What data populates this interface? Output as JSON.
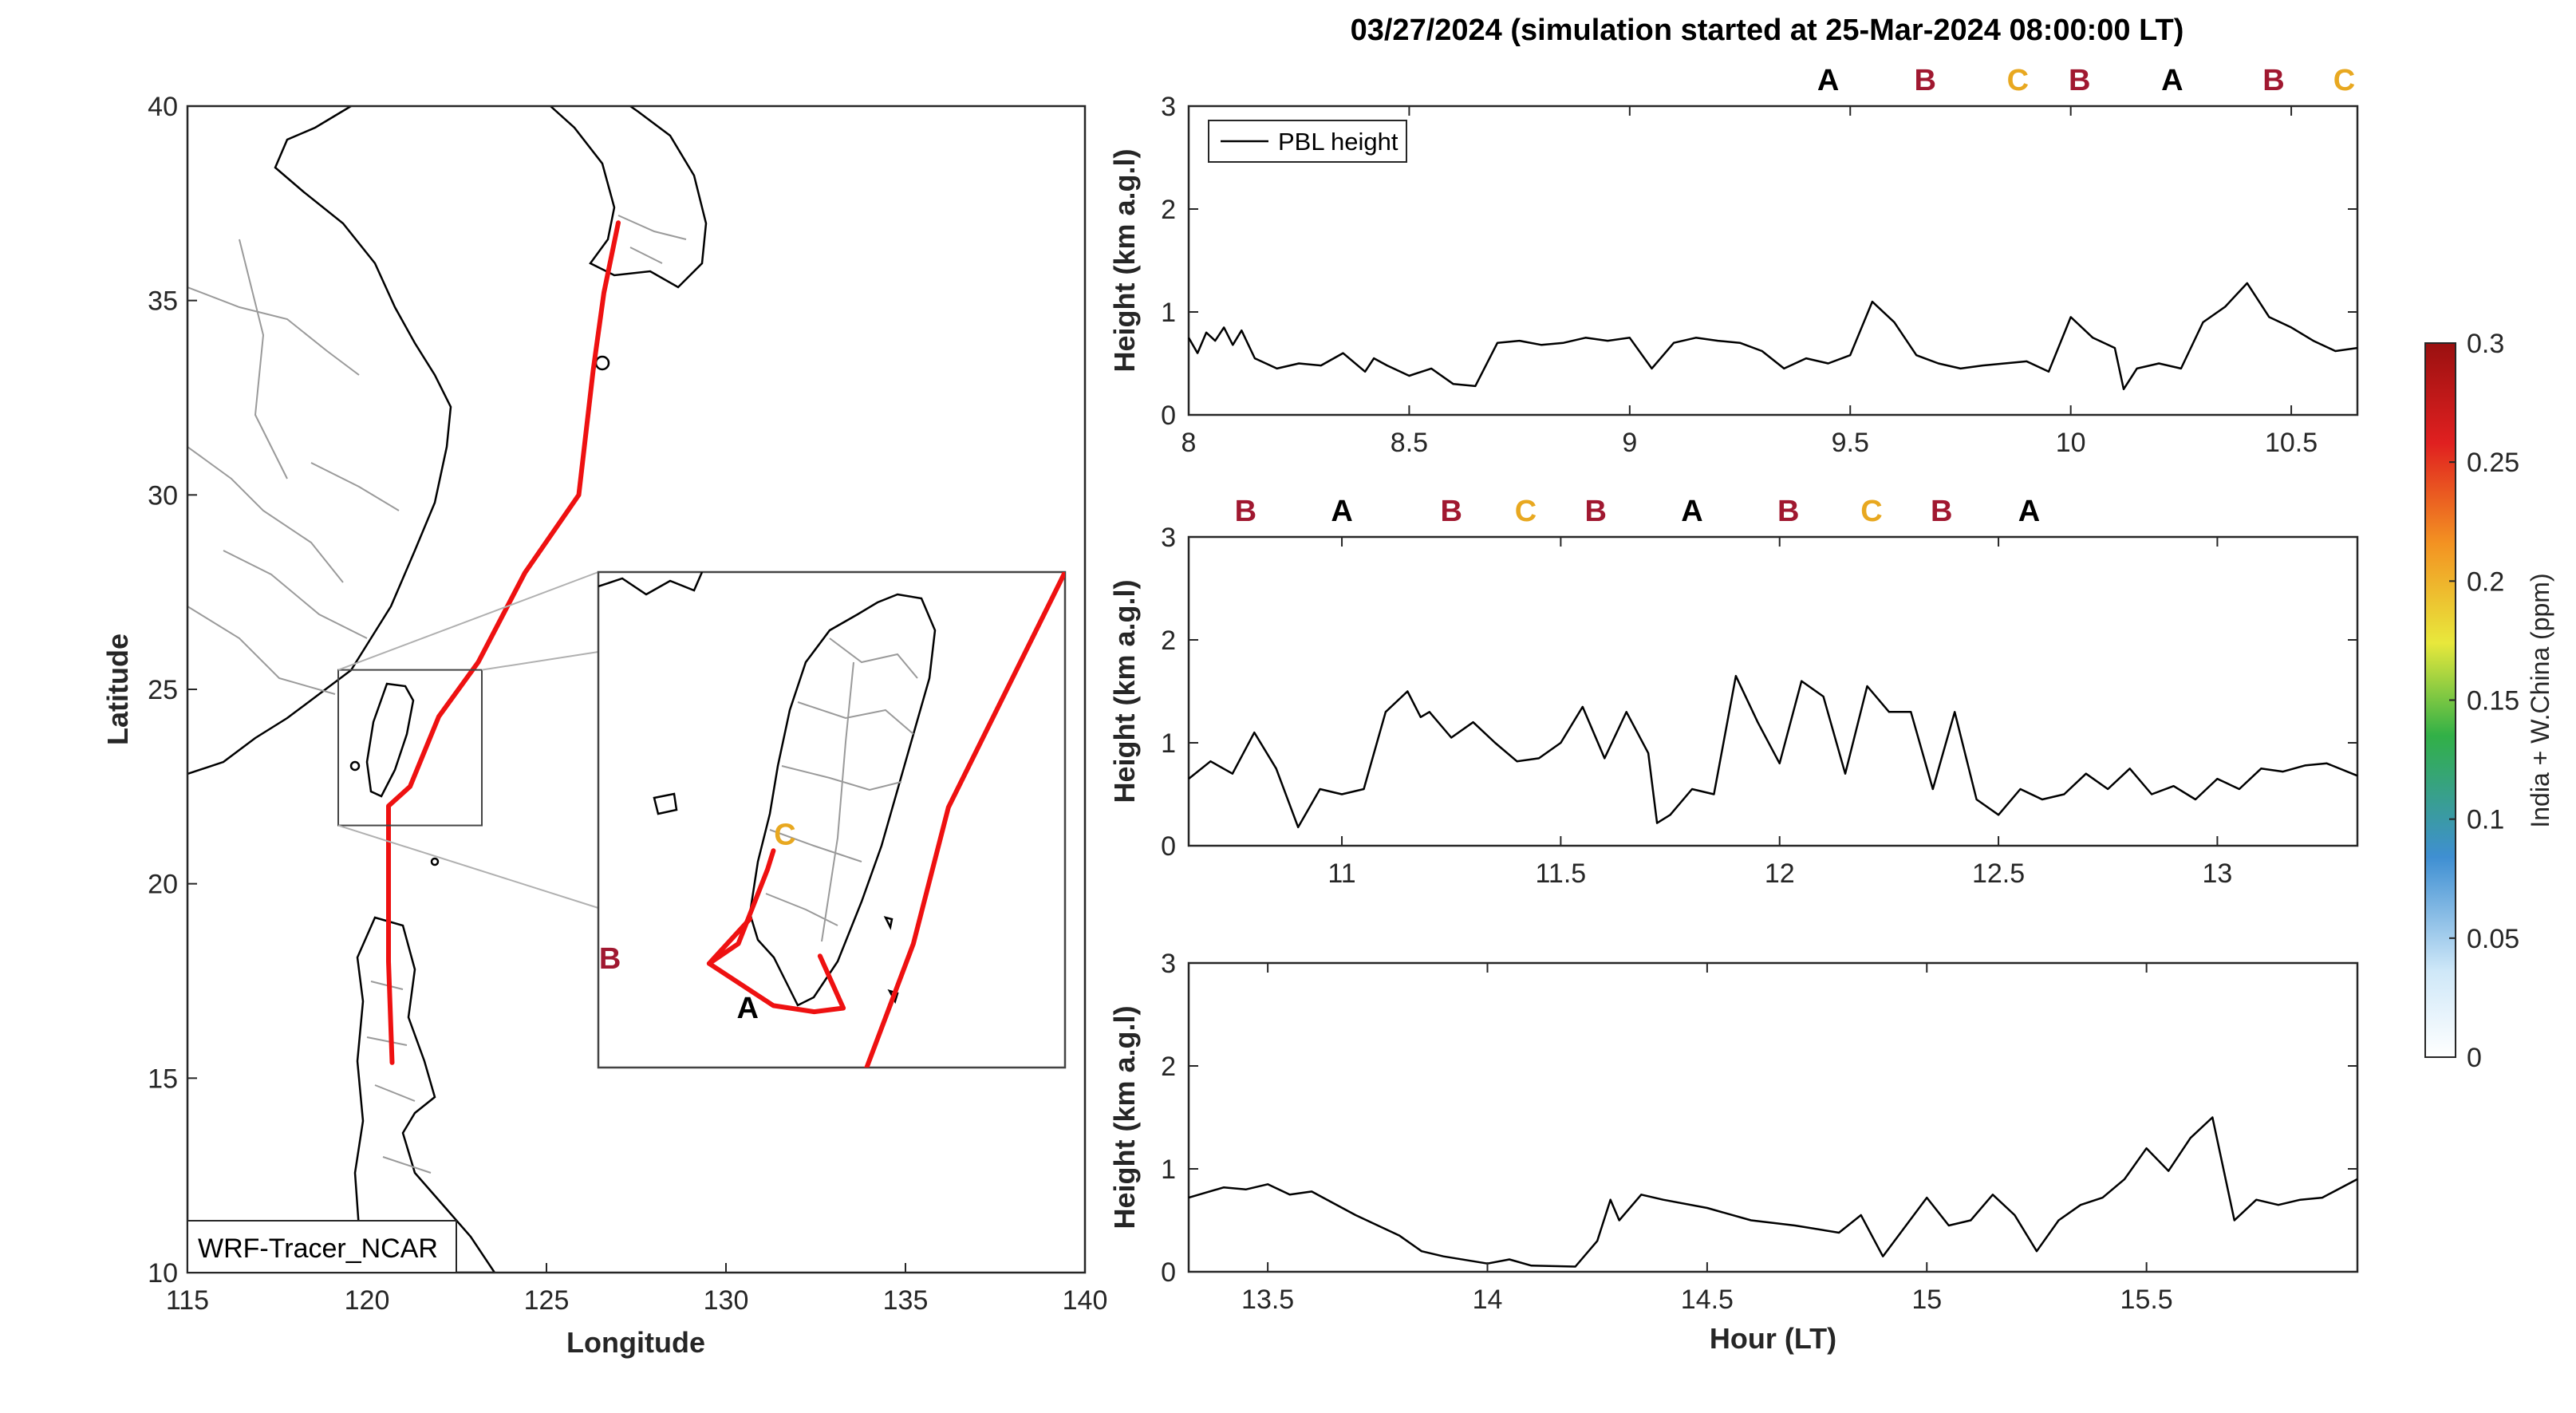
{
  "title": "03/27/2024 (simulation started at 25-Mar-2024 08:00:00 LT)",
  "colors": {
    "A": "#000000",
    "B": "#a01830",
    "C": "#e8a820",
    "track": "#ee1111",
    "pbl_line": "#000000"
  },
  "map": {
    "xlabel": "Longitude",
    "ylabel": "Latitude",
    "xlim": [
      115,
      140
    ],
    "ylim": [
      10,
      40
    ],
    "xticks": [
      "115",
      "120",
      "125",
      "130",
      "135",
      "140"
    ],
    "yticks": [
      "10",
      "15",
      "20",
      "25",
      "30",
      "35",
      "40"
    ],
    "model_label": "WRF-Tracer_NCAR",
    "inset": {
      "lonlim": [
        119.2,
        123.2
      ],
      "latlim": [
        21.5,
        25.5
      ],
      "point_labels": [
        {
          "text": "C",
          "lon": 120.8,
          "lat": 23.3
        },
        {
          "text": "B",
          "lon": 119.3,
          "lat": 22.3
        },
        {
          "text": "A",
          "lon": 120.48,
          "lat": 21.9
        }
      ]
    },
    "track": [
      [
        127.0,
        37.0
      ],
      [
        126.6,
        35.2
      ],
      [
        126.3,
        33.2
      ],
      [
        125.9,
        30.0
      ],
      [
        124.4,
        28.0
      ],
      [
        123.1,
        25.7
      ],
      [
        122.0,
        24.3
      ],
      [
        121.2,
        22.5
      ],
      [
        120.6,
        22.0
      ],
      [
        120.6,
        20.0
      ],
      [
        120.6,
        18.0
      ],
      [
        120.7,
        15.4
      ]
    ],
    "inset_track": [
      [
        [
          123.2,
          25.5
        ],
        [
          122.2,
          23.6
        ],
        [
          121.9,
          22.5
        ],
        [
          121.5,
          21.5
        ]
      ],
      [
        [
          120.7,
          23.25
        ],
        [
          120.65,
          23.1
        ],
        [
          120.4,
          22.5
        ],
        [
          120.15,
          22.34
        ],
        [
          120.7,
          22.0
        ],
        [
          121.05,
          21.95
        ],
        [
          121.3,
          21.98
        ],
        [
          121.1,
          22.4
        ]
      ],
      [
        [
          120.15,
          22.34
        ],
        [
          120.5,
          22.7
        ]
      ]
    ]
  },
  "colorbar": {
    "label": "India + W.China (ppm)",
    "ticks": [
      "0",
      "0.05",
      "0.1",
      "0.15",
      "0.2",
      "0.25",
      "0.3"
    ],
    "range": [
      0,
      0.3
    ]
  },
  "chart_data": [
    {
      "type": "line",
      "legend": "PBL height",
      "ylabel": "Height (km a.g.l)",
      "xlim": [
        8,
        10.65
      ],
      "ylim": [
        0,
        3
      ],
      "xticks": [
        "8",
        "8.5",
        "9",
        "9.5",
        "10",
        "10.5"
      ],
      "yticks": [
        "0",
        "1",
        "2",
        "3"
      ],
      "series": [
        {
          "name": "PBL height",
          "x": [
            8.0,
            8.02,
            8.04,
            8.06,
            8.08,
            8.1,
            8.12,
            8.15,
            8.2,
            8.25,
            8.3,
            8.35,
            8.4,
            8.42,
            8.45,
            8.5,
            8.55,
            8.6,
            8.65,
            8.7,
            8.75,
            8.8,
            8.85,
            8.9,
            8.95,
            9.0,
            9.05,
            9.1,
            9.15,
            9.2,
            9.25,
            9.3,
            9.35,
            9.4,
            9.45,
            9.5,
            9.55,
            9.6,
            9.65,
            9.7,
            9.75,
            9.8,
            9.85,
            9.9,
            9.95,
            10.0,
            10.05,
            10.1,
            10.12,
            10.15,
            10.2,
            10.25,
            10.3,
            10.35,
            10.4,
            10.45,
            10.5,
            10.55,
            10.6,
            10.65
          ],
          "y": [
            0.75,
            0.6,
            0.8,
            0.72,
            0.85,
            0.68,
            0.82,
            0.55,
            0.45,
            0.5,
            0.48,
            0.6,
            0.42,
            0.55,
            0.48,
            0.38,
            0.45,
            0.3,
            0.28,
            0.7,
            0.72,
            0.68,
            0.7,
            0.75,
            0.72,
            0.75,
            0.45,
            0.7,
            0.75,
            0.72,
            0.7,
            0.62,
            0.45,
            0.55,
            0.5,
            0.58,
            1.1,
            0.9,
            0.58,
            0.5,
            0.45,
            0.48,
            0.5,
            0.52,
            0.42,
            0.95,
            0.75,
            0.65,
            0.25,
            0.45,
            0.5,
            0.45,
            0.9,
            1.05,
            1.28,
            0.95,
            0.85,
            0.72,
            0.62,
            0.65
          ]
        }
      ],
      "markers": [
        {
          "text": "A",
          "x": 9.45
        },
        {
          "text": "B",
          "x": 9.67
        },
        {
          "text": "C",
          "x": 9.88
        },
        {
          "text": "B",
          "x": 10.02
        },
        {
          "text": "A",
          "x": 10.23
        },
        {
          "text": "B",
          "x": 10.46
        },
        {
          "text": "C",
          "x": 10.62
        }
      ]
    },
    {
      "type": "line",
      "ylabel": "Height (km a.g.l)",
      "xlim": [
        10.65,
        13.32
      ],
      "ylim": [
        0,
        3
      ],
      "xticks": [
        "11",
        "11.5",
        "12",
        "12.5",
        "13"
      ],
      "yticks": [
        "0",
        "1",
        "2",
        "3"
      ],
      "series": [
        {
          "name": "PBL height",
          "x": [
            10.65,
            10.7,
            10.75,
            10.8,
            10.85,
            10.9,
            10.95,
            11.0,
            11.05,
            11.1,
            11.15,
            11.18,
            11.2,
            11.25,
            11.3,
            11.35,
            11.4,
            11.45,
            11.5,
            11.55,
            11.6,
            11.65,
            11.7,
            11.72,
            11.75,
            11.8,
            11.85,
            11.9,
            11.95,
            12.0,
            12.05,
            12.1,
            12.15,
            12.2,
            12.25,
            12.3,
            12.35,
            12.4,
            12.45,
            12.5,
            12.55,
            12.6,
            12.65,
            12.7,
            12.75,
            12.8,
            12.85,
            12.9,
            12.95,
            13.0,
            13.05,
            13.1,
            13.15,
            13.2,
            13.25,
            13.32
          ],
          "y": [
            0.65,
            0.82,
            0.7,
            1.1,
            0.75,
            0.18,
            0.55,
            0.5,
            0.55,
            1.3,
            1.5,
            1.25,
            1.3,
            1.05,
            1.2,
            1.0,
            0.82,
            0.85,
            1.0,
            1.35,
            0.85,
            1.3,
            0.9,
            0.22,
            0.3,
            0.55,
            0.5,
            1.65,
            1.2,
            0.8,
            1.6,
            1.45,
            0.7,
            1.55,
            1.3,
            1.3,
            0.55,
            1.3,
            0.45,
            0.3,
            0.55,
            0.45,
            0.5,
            0.7,
            0.55,
            0.75,
            0.5,
            0.58,
            0.45,
            0.65,
            0.55,
            0.75,
            0.72,
            0.78,
            0.8,
            0.68
          ]
        }
      ],
      "markers": [
        {
          "text": "B",
          "x": 10.78
        },
        {
          "text": "A",
          "x": 11.0
        },
        {
          "text": "B",
          "x": 11.25
        },
        {
          "text": "C",
          "x": 11.42
        },
        {
          "text": "B",
          "x": 11.58
        },
        {
          "text": "A",
          "x": 11.8
        },
        {
          "text": "B",
          "x": 12.02
        },
        {
          "text": "C",
          "x": 12.21
        },
        {
          "text": "B",
          "x": 12.37
        },
        {
          "text": "A",
          "x": 12.57
        }
      ]
    },
    {
      "type": "line",
      "ylabel": "Height (km a.g.l)",
      "xlabel": "Hour (LT)",
      "xlim": [
        13.32,
        15.98
      ],
      "ylim": [
        0,
        3
      ],
      "xticks": [
        "13.5",
        "14",
        "14.5",
        "15",
        "15.5"
      ],
      "yticks": [
        "0",
        "1",
        "2",
        "3"
      ],
      "series": [
        {
          "name": "PBL height",
          "x": [
            13.32,
            13.4,
            13.45,
            13.5,
            13.55,
            13.6,
            13.7,
            13.8,
            13.85,
            13.9,
            14.0,
            14.05,
            14.1,
            14.2,
            14.25,
            14.28,
            14.3,
            14.35,
            14.4,
            14.5,
            14.6,
            14.7,
            14.8,
            14.85,
            14.9,
            15.0,
            15.05,
            15.1,
            15.15,
            15.2,
            15.25,
            15.3,
            15.35,
            15.4,
            15.45,
            15.5,
            15.55,
            15.6,
            15.65,
            15.7,
            15.75,
            15.8,
            15.85,
            15.9,
            15.98
          ],
          "y": [
            0.72,
            0.82,
            0.8,
            0.85,
            0.75,
            0.78,
            0.55,
            0.35,
            0.2,
            0.15,
            0.08,
            0.12,
            0.06,
            0.05,
            0.3,
            0.7,
            0.5,
            0.75,
            0.7,
            0.62,
            0.5,
            0.45,
            0.38,
            0.55,
            0.15,
            0.72,
            0.45,
            0.5,
            0.75,
            0.55,
            0.2,
            0.5,
            0.65,
            0.72,
            0.9,
            1.2,
            0.98,
            1.3,
            1.5,
            0.5,
            0.7,
            0.65,
            0.7,
            0.72,
            0.9
          ]
        }
      ],
      "markers": []
    }
  ]
}
